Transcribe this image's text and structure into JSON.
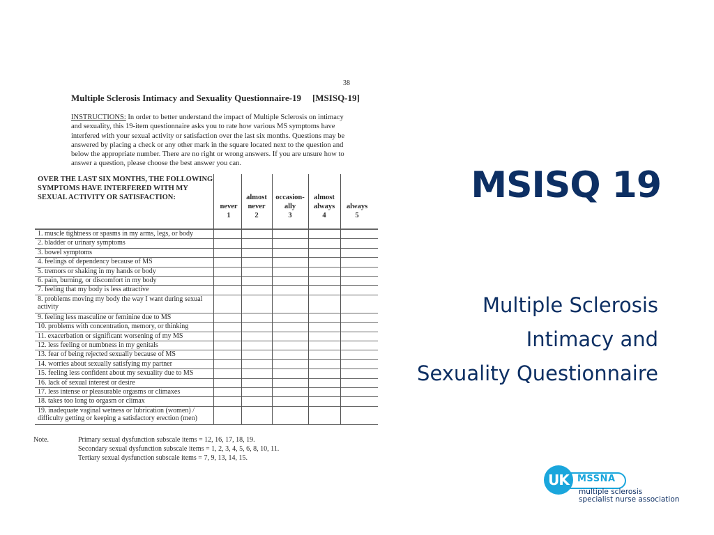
{
  "scan": {
    "page_number": "38",
    "title": "Multiple Sclerosis Intimacy and Sexuality Questionnaire-19",
    "title_abbr": "[MSISQ-19]",
    "instructions_lead": "INSTRUCTIONS:",
    "instructions_text": " In order to better understand the impact of Multiple Sclerosis on intimacy and sexuality, this 19-item questionnaire asks you to rate how various MS symptoms have interfered with your sexual activity or satisfaction over the last six months. Questions may be answered by placing a check or any other mark in the square located next to the question and below the appropriate number. There are no right or wrong answers.  If you are unsure how to answer a question, please choose the best answer you can.",
    "table_header": "OVER THE LAST SIX MONTHS, THE FOLLOWING SYMPTOMS HAVE INTERFERED WITH MY SEXUAL ACTIVITY OR SATISFACTION:",
    "columns": [
      {
        "label": "never",
        "num": "1"
      },
      {
        "label": "almost never",
        "num": "2"
      },
      {
        "label": "occasion-ally",
        "num": "3"
      },
      {
        "label": "almost always",
        "num": "4"
      },
      {
        "label": "always",
        "num": "5"
      }
    ],
    "items": [
      "1. muscle tightness or spasms in my arms, legs, or body",
      "2. bladder or urinary symptoms",
      "3. bowel symptoms",
      "4. feelings of dependency because of MS",
      "5. tremors or shaking in my hands or body",
      "6. pain, burning, or discomfort in my body",
      "7. feeling that my body is less attractive",
      "8. problems moving my body the way I want during sexual activity",
      "9. feeling less masculine or feminine due to MS",
      "10. problems with concentration, memory, or thinking",
      "11. exacerbation or significant worsening of my MS",
      "12. less feeling or numbness in my genitals",
      "13. fear of being rejected sexually because of MS",
      "14. worries about sexually satisfying my partner",
      "15. feeling less confident about my sexuality due to MS",
      "16. lack of sexual interest or desire",
      "17. less intense or pleasurable orgasms or climaxes",
      "18. takes too long to orgasm or climax",
      "19. inadequate vaginal wetness or lubrication (women) / difficulty getting or keeping a satisfactory erection (men)"
    ],
    "note_label": "Note.",
    "notes": [
      "Primary sexual dysfunction subscale items = 12, 16, 17, 18, 19.",
      "Secondary sexual dysfunction subscale items = 1, 2, 3, 4, 5, 6, 8, 10, 11.",
      "Tertiary sexual dysfunction subscale items =  7, 9, 13, 14, 15."
    ]
  },
  "slide": {
    "title": "MSISQ 19",
    "subtitle_lines": [
      "Multiple Sclerosis",
      "Intimacy and",
      "Sexuality Questionnaire"
    ]
  },
  "logo": {
    "circle_text": "UK",
    "abbr": "MSSNA",
    "line1": "multiple sclerosis",
    "line2": "specialist nurse association"
  },
  "colors": {
    "title_navy": "#0d2f63",
    "logo_blue": "#1aa6dc"
  }
}
